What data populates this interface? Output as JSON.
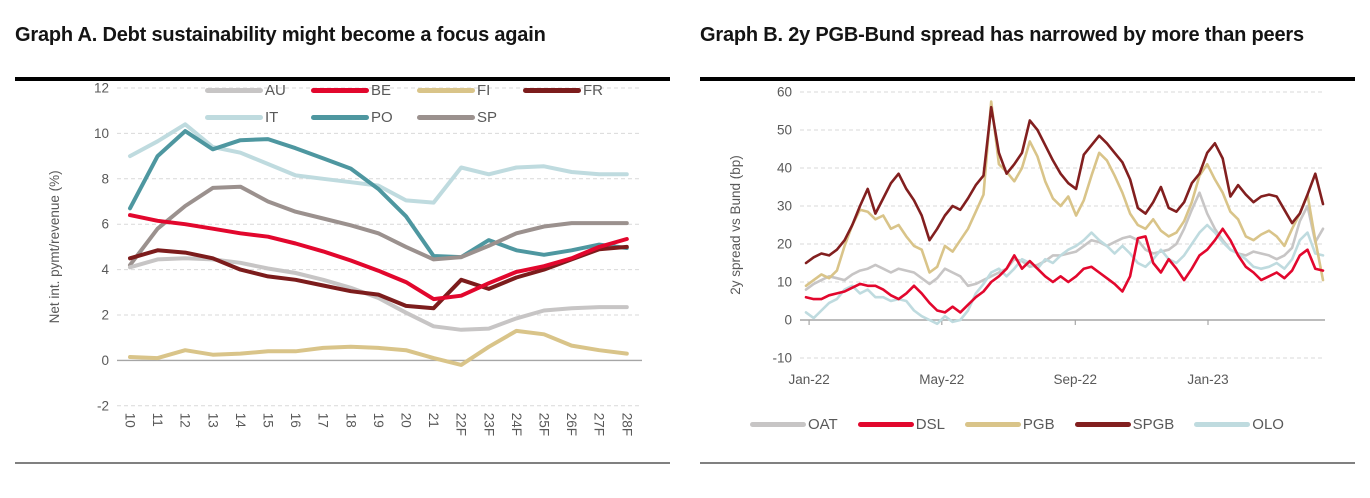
{
  "colors": {
    "background": "#ffffff",
    "title_text": "#141414",
    "axis_text": "#595959",
    "grid": "#d9d9d9",
    "zero_line": "#a6a6a6",
    "title_rule": "#000000",
    "bottom_rule": "#808080"
  },
  "chart_data": [
    {
      "id": "graph-a",
      "type": "line",
      "title": "Graph A. Debt sustainability might become a focus again",
      "ylabel": "Net int. pymt/revenue (%)",
      "xlabel": "",
      "ylim": [
        -2,
        12
      ],
      "ytick_step": 2,
      "grid": "horizontal dashed, zero line solid",
      "legend_position": "top inside, two rows",
      "categories": [
        "10",
        "11",
        "12",
        "13",
        "14",
        "15",
        "16",
        "17",
        "18",
        "19",
        "20",
        "21",
        "22F",
        "23F",
        "24F",
        "25F",
        "26F",
        "27F",
        "28F"
      ],
      "series": [
        {
          "name": "AU",
          "color": "#c7c5c5",
          "values": [
            4.1,
            4.45,
            4.5,
            4.45,
            4.3,
            4.05,
            3.85,
            3.55,
            3.2,
            2.75,
            2.1,
            1.5,
            1.35,
            1.4,
            1.85,
            2.2,
            2.3,
            2.35,
            2.35
          ]
        },
        {
          "name": "BE",
          "color": "#e2072d",
          "values": [
            6.4,
            6.15,
            6.0,
            5.8,
            5.6,
            5.45,
            5.15,
            4.8,
            4.4,
            3.95,
            3.45,
            2.7,
            2.85,
            3.4,
            3.9,
            4.15,
            4.5,
            5.0,
            5.35
          ]
        },
        {
          "name": "FI",
          "color": "#d9c489",
          "values": [
            0.15,
            0.1,
            0.45,
            0.25,
            0.3,
            0.4,
            0.4,
            0.55,
            0.6,
            0.55,
            0.45,
            0.1,
            -0.2,
            0.6,
            1.3,
            1.15,
            0.65,
            0.45,
            0.3
          ]
        },
        {
          "name": "FR",
          "color": "#7c1c1c",
          "values": [
            4.5,
            4.85,
            4.75,
            4.5,
            4.0,
            3.7,
            3.55,
            3.3,
            3.05,
            2.9,
            2.4,
            2.3,
            3.55,
            3.15,
            3.65,
            4.0,
            4.45,
            4.9,
            5.0
          ]
        },
        {
          "name": "IT",
          "color": "#bfdbdf",
          "values": [
            9.0,
            9.65,
            10.4,
            9.4,
            9.15,
            8.65,
            8.15,
            8.0,
            7.85,
            7.7,
            7.05,
            6.95,
            8.5,
            8.2,
            8.5,
            8.55,
            8.3,
            8.2,
            8.2
          ]
        },
        {
          "name": "PO",
          "color": "#4e97a0",
          "values": [
            6.7,
            9.0,
            10.1,
            9.3,
            9.7,
            9.75,
            9.35,
            8.9,
            8.45,
            7.55,
            6.35,
            4.6,
            4.55,
            5.3,
            4.85,
            4.65,
            4.85,
            5.1,
            4.95
          ]
        },
        {
          "name": "SP",
          "color": "#9b918e",
          "values": [
            4.2,
            5.8,
            6.8,
            7.6,
            7.65,
            7.0,
            6.55,
            6.25,
            5.95,
            5.6,
            5.0,
            4.45,
            4.55,
            5.05,
            5.6,
            5.9,
            6.05,
            6.05,
            6.05
          ]
        }
      ],
      "z_order": [
        "IT",
        "PO",
        "SP",
        "AU",
        "FI",
        "FR",
        "BE"
      ],
      "legend_rows": [
        [
          0,
          1,
          2,
          3
        ],
        [
          4,
          5,
          6
        ]
      ]
    },
    {
      "id": "graph-b",
      "type": "line",
      "title": "Graph B. 2y PGB-Bund spread has narrowed by more than peers",
      "ylabel": "2y spread vs Bund (bp)",
      "xlabel": "",
      "ylim": [
        -10,
        60
      ],
      "ytick_step": 10,
      "grid": "horizontal dashed, zero line solid with ticks",
      "legend_position": "bottom, one row",
      "x_note": "Daily series Jan-2022 to mid-Apr-2023, sampled to 68 points",
      "x_ticks": [
        {
          "label": "Jan-22",
          "idx": 0.4
        },
        {
          "label": "May-22",
          "idx": 17.6
        },
        {
          "label": "Sep-22",
          "idx": 34.9
        },
        {
          "label": "Jan-23",
          "idx": 52.1
        }
      ],
      "series": [
        {
          "name": "OAT",
          "color": "#c7c5c5",
          "values": [
            8,
            9.5,
            10.5,
            11.5,
            11,
            10.5,
            12,
            13,
            13.5,
            14.5,
            13.5,
            12.5,
            13.5,
            13,
            12.5,
            11,
            9.5,
            11,
            13.5,
            12.5,
            11.5,
            9,
            9.5,
            10.5,
            11.5,
            12.5,
            13.5,
            16,
            15.5,
            14,
            14.5,
            15.5,
            17,
            17,
            17.5,
            18,
            19.5,
            21,
            20.5,
            19.5,
            20.5,
            21.5,
            22,
            21,
            18.5,
            17.5,
            18,
            18.5,
            20,
            24,
            29,
            33.5,
            28,
            24,
            21,
            18.5,
            17.5,
            17,
            18,
            17.5,
            17,
            16,
            17,
            19,
            26,
            30,
            20.5,
            24
          ]
        },
        {
          "name": "DSL",
          "color": "#e2072d",
          "values": [
            6,
            5.5,
            5.5,
            6.5,
            7,
            7.5,
            8.5,
            9.5,
            9,
            9,
            8,
            6.5,
            5.5,
            7,
            9,
            7,
            4.5,
            2.5,
            2,
            3.5,
            2,
            4,
            6,
            7.5,
            10,
            11.5,
            13.5,
            17,
            13.5,
            15.5,
            13.5,
            11.5,
            10,
            11.5,
            10,
            11.5,
            13.5,
            14,
            12.5,
            11,
            9.5,
            7.5,
            11.5,
            21.5,
            22,
            15,
            12.5,
            16,
            13.5,
            10.5,
            13.5,
            17,
            18.5,
            21,
            24,
            21,
            17,
            14,
            12.5,
            10.5,
            11.5,
            12.5,
            11,
            13,
            17,
            18.5,
            13.5,
            13
          ]
        },
        {
          "name": "PGB",
          "color": "#d9c489",
          "values": [
            9,
            10.5,
            12,
            11,
            13,
            19.5,
            25,
            29,
            28.5,
            26.5,
            27.5,
            24,
            25,
            22,
            19.5,
            18.5,
            12.5,
            14,
            19.5,
            18,
            21,
            24,
            28.5,
            33,
            57.5,
            41,
            39,
            36.5,
            40,
            47,
            43,
            36.5,
            32,
            30,
            32.5,
            27.5,
            31.5,
            38,
            44,
            42,
            38,
            33.5,
            28,
            25,
            24,
            26.5,
            23.5,
            22,
            23,
            26,
            31,
            38,
            41,
            37,
            33.5,
            28.5,
            26.5,
            22,
            21,
            22.5,
            23.5,
            22,
            19.5,
            24,
            28,
            33,
            21,
            10.5
          ]
        },
        {
          "name": "SPGB",
          "color": "#821f1f",
          "values": [
            15,
            16.5,
            17.5,
            17,
            18.5,
            21,
            25,
            30,
            34.5,
            28,
            32,
            36,
            38.5,
            34.5,
            31.5,
            27.5,
            21,
            24,
            27.5,
            30,
            29,
            32,
            35.5,
            38,
            56,
            44,
            38.5,
            41,
            44,
            52.5,
            50,
            46,
            42,
            38.5,
            36,
            34.5,
            43.5,
            46,
            48.5,
            46.5,
            44,
            41.5,
            37,
            29.5,
            28,
            31,
            35,
            29.5,
            28.5,
            31,
            36,
            38.5,
            44,
            46.5,
            42.5,
            32.5,
            35.5,
            33,
            31,
            32.5,
            33,
            32.5,
            29,
            25.5,
            28,
            33,
            38.5,
            30.5
          ]
        },
        {
          "name": "OLO",
          "color": "#bfdbdf",
          "values": [
            2,
            0.5,
            2.5,
            4.5,
            5.5,
            8,
            9,
            7,
            8,
            6,
            6,
            5,
            5.5,
            5,
            2.5,
            1,
            0,
            -1,
            1,
            -0.5,
            0,
            2.5,
            7,
            9.5,
            12.5,
            13.5,
            11.5,
            13.5,
            16,
            15,
            13.5,
            16,
            15,
            17,
            18.5,
            19.5,
            21,
            23,
            21,
            19.5,
            17.5,
            19.5,
            17.5,
            15,
            14,
            16,
            18.5,
            16,
            15,
            17,
            20,
            23,
            25,
            23,
            20.5,
            18.5,
            17.5,
            16,
            14,
            13.5,
            14,
            15,
            13.5,
            16,
            21,
            23,
            17.5,
            17
          ]
        }
      ],
      "z_order": [
        "OAT",
        "OLO",
        "PGB",
        "DSL",
        "SPGB"
      ],
      "legend_rows": [
        [
          0,
          1,
          2,
          3,
          4
        ]
      ]
    }
  ]
}
